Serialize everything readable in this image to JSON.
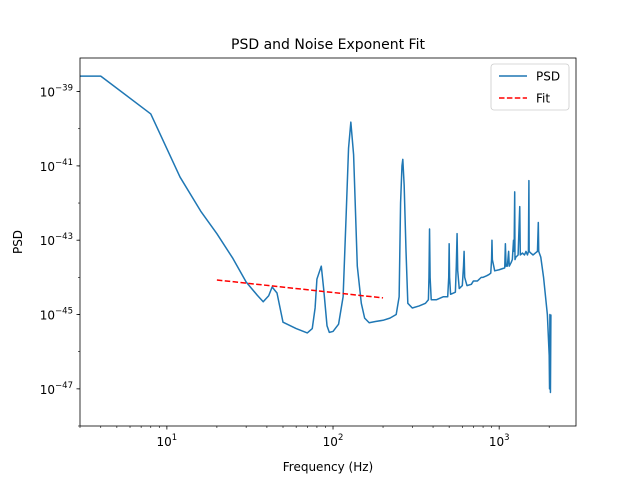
{
  "chart_data": {
    "type": "line",
    "title": "PSD and Noise Exponent Fit",
    "xlabel": "Frequency (Hz)",
    "ylabel": "PSD",
    "xscale": "log",
    "yscale": "log",
    "xlim": [
      3,
      2900
    ],
    "ylim": [
      1e-48,
      8e-39
    ],
    "grid": false,
    "legend_position": "upper-right",
    "x_ticks": [
      {
        "value": 10,
        "base": "10",
        "exp": "1"
      },
      {
        "value": 100,
        "base": "10",
        "exp": "2"
      },
      {
        "value": 1000,
        "base": "10",
        "exp": "3"
      }
    ],
    "y_ticks": [
      {
        "value": 1e-47,
        "base": "10",
        "exp": "−47"
      },
      {
        "value": 1e-45,
        "base": "10",
        "exp": "−45"
      },
      {
        "value": 1e-43,
        "base": "10",
        "exp": "−43"
      },
      {
        "value": 1e-41,
        "base": "10",
        "exp": "−41"
      },
      {
        "value": 1e-39,
        "base": "10",
        "exp": "−39"
      }
    ],
    "series": [
      {
        "name": "PSD",
        "color": "#1f77b4",
        "style": "solid",
        "points": [
          [
            3,
            2.6e-39
          ],
          [
            4,
            2.6e-39
          ],
          [
            8,
            2.5e-40
          ],
          [
            12,
            5e-42
          ],
          [
            16,
            6e-43
          ],
          [
            20,
            1.5e-43
          ],
          [
            25,
            3.2e-44
          ],
          [
            30,
            7.5e-45
          ],
          [
            35,
            3.3e-45
          ],
          [
            38,
            2.2e-45
          ],
          [
            41,
            3.2e-45
          ],
          [
            43,
            5.5e-45
          ],
          [
            46,
            3.8e-45
          ],
          [
            50,
            6.2e-46
          ],
          [
            60,
            4.2e-46
          ],
          [
            70,
            3.2e-46
          ],
          [
            75,
            4.2e-46
          ],
          [
            78,
            1.5e-45
          ],
          [
            80,
            9e-45
          ],
          [
            85,
            2e-44
          ],
          [
            88,
            4.5e-45
          ],
          [
            92,
            5e-46
          ],
          [
            95,
            3.3e-46
          ],
          [
            100,
            3.5e-46
          ],
          [
            108,
            5.5e-46
          ],
          [
            115,
            3e-45
          ],
          [
            120,
            5e-43
          ],
          [
            124,
            3e-41
          ],
          [
            128,
            1.5e-40
          ],
          [
            133,
            2e-41
          ],
          [
            140,
            2e-44
          ],
          [
            148,
            2e-45
          ],
          [
            155,
            8e-46
          ],
          [
            165,
            6e-46
          ],
          [
            180,
            6.5e-46
          ],
          [
            200,
            7e-46
          ],
          [
            220,
            8e-46
          ],
          [
            240,
            1e-45
          ],
          [
            250,
            3e-45
          ],
          [
            255,
            1e-42
          ],
          [
            260,
            1e-41
          ],
          [
            263,
            1.5e-41
          ],
          [
            268,
            3e-42
          ],
          [
            275,
            5e-44
          ],
          [
            282,
            2e-45
          ],
          [
            300,
            1.5e-45
          ],
          [
            330,
            1.7e-45
          ],
          [
            360,
            2e-45
          ],
          [
            375,
            2.5e-45
          ],
          [
            378,
            1e-44
          ],
          [
            381,
            2e-43
          ],
          [
            384,
            1e-44
          ],
          [
            390,
            2.5e-45
          ],
          [
            420,
            2.5e-45
          ],
          [
            460,
            3e-45
          ],
          [
            490,
            3e-45
          ],
          [
            497,
            1e-44
          ],
          [
            500,
            8e-44
          ],
          [
            503,
            1e-44
          ],
          [
            510,
            3.5e-45
          ],
          [
            545,
            4e-45
          ],
          [
            552,
            2e-44
          ],
          [
            558,
            1.5e-43
          ],
          [
            563,
            1.5e-44
          ],
          [
            575,
            5e-45
          ],
          [
            600,
            6e-45
          ],
          [
            610,
            2e-44
          ],
          [
            615,
            5e-44
          ],
          [
            620,
            1e-44
          ],
          [
            640,
            6e-45
          ],
          [
            680,
            6.5e-45
          ],
          [
            700,
            8e-45
          ],
          [
            740,
            8e-45
          ],
          [
            780,
            1e-44
          ],
          [
            800,
            1e-44
          ],
          [
            840,
            1.1e-44
          ],
          [
            870,
            1.2e-44
          ],
          [
            890,
            1.3e-44
          ],
          [
            900,
            3e-44
          ],
          [
            905,
            1e-43
          ],
          [
            910,
            3e-44
          ],
          [
            940,
            1.5e-44
          ],
          [
            1000,
            1.6e-44
          ],
          [
            1080,
            1.8e-44
          ],
          [
            1090,
            8e-44
          ],
          [
            1100,
            2e-44
          ],
          [
            1120,
            2e-44
          ],
          [
            1140,
            5e-44
          ],
          [
            1150,
            2e-44
          ],
          [
            1180,
            2.5e-44
          ],
          [
            1200,
            3e-44
          ],
          [
            1220,
            1e-43
          ],
          [
            1230,
            5e-44
          ],
          [
            1240,
            2e-42
          ],
          [
            1245,
            3e-44
          ],
          [
            1260,
            3.5e-44
          ],
          [
            1300,
            4e-44
          ],
          [
            1330,
            8e-43
          ],
          [
            1340,
            4e-44
          ],
          [
            1380,
            4.5e-44
          ],
          [
            1420,
            4e-44
          ],
          [
            1450,
            5e-44
          ],
          [
            1480,
            4e-44
          ],
          [
            1500,
            5e-44
          ],
          [
            1510,
            4e-42
          ],
          [
            1515,
            5e-44
          ],
          [
            1550,
            4.5e-44
          ],
          [
            1600,
            4e-44
          ],
          [
            1650,
            4.5e-44
          ],
          [
            1700,
            5e-44
          ],
          [
            1720,
            3e-43
          ],
          [
            1730,
            5e-44
          ],
          [
            1780,
            3.5e-44
          ],
          [
            1850,
            1e-44
          ],
          [
            1950,
            1e-45
          ],
          [
            2000,
            8e-47
          ],
          [
            2010,
            1e-47
          ],
          [
            2020,
            1e-45
          ],
          [
            2035,
            8e-48
          ],
          [
            2048,
            1e-45
          ]
        ]
      },
      {
        "name": "Fit",
        "color": "#ff0000",
        "style": "dashed",
        "points": [
          [
            20,
            8.5e-45
          ],
          [
            200,
            2.8e-45
          ]
        ]
      }
    ]
  }
}
